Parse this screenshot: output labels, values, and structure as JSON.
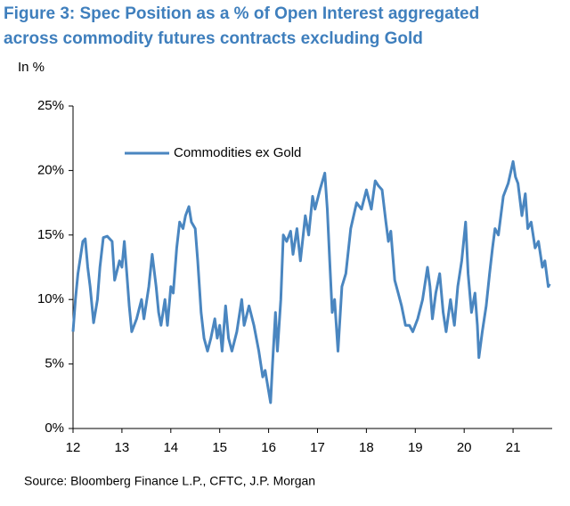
{
  "chart_data": {
    "type": "line",
    "title": [
      "Figure 3: Spec Position as a % of Open Interest aggregated",
      "across commodity futures contracts excluding Gold"
    ],
    "subtitle": "In %",
    "source": "Source: Bloomberg Finance L.P., CFTC, J.P. Morgan",
    "legend": "upper left",
    "xlim": [
      12,
      21.8
    ],
    "xticks": [
      12,
      13,
      14,
      15,
      16,
      17,
      18,
      19,
      20,
      21
    ],
    "ylim": [
      0,
      25
    ],
    "yticks": [
      {
        "value": 0,
        "label": "0%"
      },
      {
        "value": 5,
        "label": "5%"
      },
      {
        "value": 10,
        "label": "10%"
      },
      {
        "value": 15,
        "label": "15%"
      },
      {
        "value": 20,
        "label": "20%"
      },
      {
        "value": 25,
        "label": "25%"
      }
    ],
    "x": [
      12.0,
      12.05,
      12.1,
      12.2,
      12.25,
      12.3,
      12.35,
      12.42,
      12.5,
      12.55,
      12.62,
      12.7,
      12.8,
      12.85,
      12.95,
      13.0,
      13.05,
      13.1,
      13.15,
      13.2,
      13.3,
      13.4,
      13.45,
      13.55,
      13.62,
      13.7,
      13.75,
      13.8,
      13.88,
      13.93,
      14.0,
      14.05,
      14.12,
      14.18,
      14.25,
      14.3,
      14.37,
      14.42,
      14.5,
      14.55,
      14.62,
      14.68,
      14.75,
      14.82,
      14.9,
      14.95,
      15.0,
      15.05,
      15.12,
      15.18,
      15.25,
      15.35,
      15.45,
      15.5,
      15.6,
      15.7,
      15.8,
      15.88,
      15.93,
      16.04,
      16.08,
      16.14,
      16.18,
      16.25,
      16.3,
      16.37,
      16.45,
      16.5,
      16.58,
      16.65,
      16.75,
      16.82,
      16.9,
      16.95,
      17.05,
      17.15,
      17.2,
      17.25,
      17.3,
      17.35,
      17.42,
      17.5,
      17.58,
      17.68,
      17.8,
      17.9,
      18.0,
      18.1,
      18.18,
      18.25,
      18.32,
      18.4,
      18.45,
      18.5,
      18.58,
      18.65,
      18.72,
      18.8,
      18.88,
      18.95,
      19.05,
      19.15,
      19.25,
      19.3,
      19.35,
      19.42,
      19.5,
      19.57,
      19.63,
      19.72,
      19.8,
      19.87,
      19.95,
      20.03,
      20.08,
      20.15,
      20.22,
      20.27,
      20.3,
      20.37,
      20.45,
      20.52,
      20.58,
      20.63,
      20.7,
      20.8,
      20.9,
      21.0,
      21.05,
      21.1,
      21.18,
      21.25,
      21.3,
      21.37,
      21.45,
      21.52,
      21.6,
      21.65,
      21.72,
      21.75
    ],
    "series": [
      {
        "name": "Commodities ex Gold",
        "color": "#4a86c0",
        "values": [
          7.5,
          10,
          12,
          14.5,
          14.7,
          12.5,
          11,
          8.2,
          10,
          12.5,
          14.8,
          14.9,
          14.5,
          11.5,
          13,
          12.5,
          14.5,
          12,
          9.5,
          7.5,
          8.5,
          10,
          8.5,
          11,
          13.5,
          11,
          9,
          8,
          10,
          8,
          11,
          10.5,
          14,
          16,
          15.5,
          16.5,
          17.2,
          16,
          15.5,
          13,
          9,
          7,
          6,
          7,
          8.5,
          7,
          8,
          6,
          9.5,
          7,
          6,
          7.5,
          10,
          8,
          9.5,
          8,
          6,
          4,
          4.5,
          2,
          5,
          9,
          6,
          10,
          15,
          14.5,
          15.3,
          13.5,
          15.5,
          13,
          16.5,
          15,
          18,
          17,
          18.5,
          19.8,
          17,
          13,
          9,
          10,
          6,
          11,
          12,
          15.5,
          17.5,
          17,
          18.5,
          17,
          19.2,
          18.8,
          18.5,
          16,
          14.5,
          15.3,
          11.5,
          10.5,
          9.5,
          8,
          8,
          7.5,
          8.5,
          10,
          12.5,
          11,
          8.5,
          10.5,
          12,
          9,
          7.5,
          10,
          8,
          11,
          13,
          16,
          12,
          9,
          10.5,
          8,
          5.5,
          7.5,
          9.5,
          12,
          14,
          15.5,
          15,
          18,
          19,
          20.7,
          19.5,
          19,
          16.5,
          18.2,
          15.5,
          16,
          14,
          14.5,
          12.5,
          13,
          11,
          11.2
        ]
      }
    ]
  }
}
